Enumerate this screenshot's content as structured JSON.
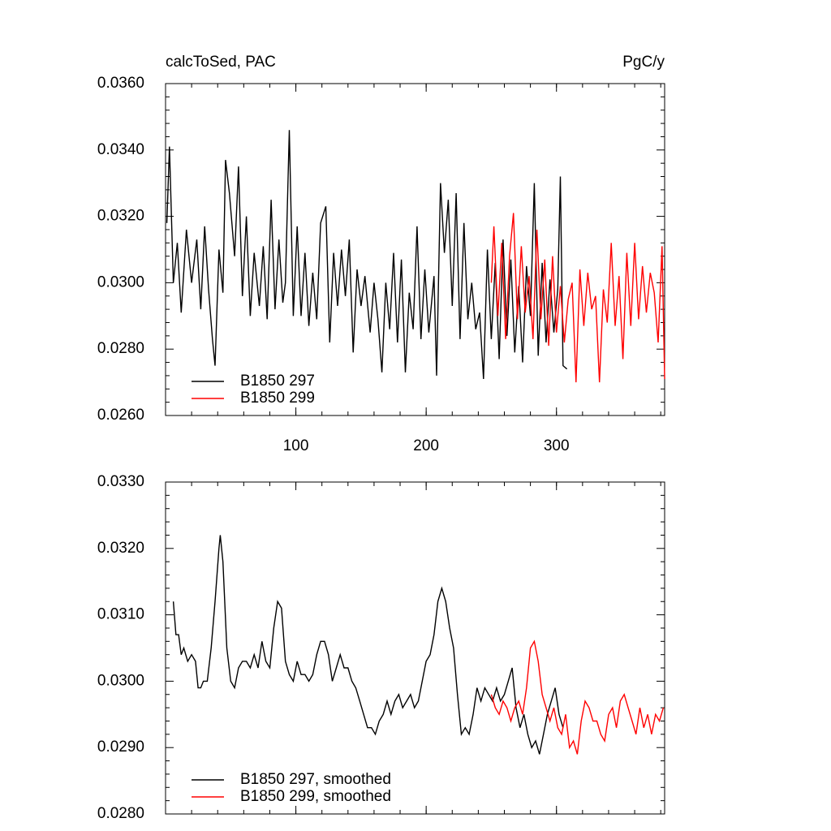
{
  "chart_data": [
    {
      "type": "line",
      "title_left": "calcToSed, PAC",
      "title_right": "PgC/y",
      "xlim": [
        0,
        383
      ],
      "xticks": [
        100,
        200,
        300
      ],
      "xtick_labels": true,
      "ylim": [
        0.026,
        0.036
      ],
      "yticks": [
        {
          "value": 0.026,
          "label": "0.0260"
        },
        {
          "value": 0.028,
          "label": "0.0280"
        },
        {
          "value": 0.03,
          "label": "0.0300"
        },
        {
          "value": 0.032,
          "label": "0.0320"
        },
        {
          "value": 0.034,
          "label": "0.0340"
        },
        {
          "value": 0.036,
          "label": "0.0360"
        }
      ],
      "legend": "bottom-left",
      "series": [
        {
          "name": "B1850 297",
          "color": "#000000",
          "x": [
            1,
            3,
            6,
            9,
            12,
            16,
            20,
            24,
            27,
            30,
            33,
            36,
            38,
            41,
            44,
            46,
            49,
            53,
            56,
            59,
            62,
            65,
            68,
            72,
            75,
            78,
            81,
            84,
            87,
            90,
            92,
            95,
            98,
            101,
            104,
            107,
            110,
            113,
            116,
            119,
            123,
            126,
            129,
            132,
            135,
            138,
            141,
            144,
            147,
            150,
            153,
            157,
            160,
            163,
            166,
            169,
            172,
            175,
            178,
            181,
            184,
            187,
            190,
            193,
            196,
            199,
            202,
            206,
            208,
            211,
            214,
            217,
            220,
            223,
            226,
            229,
            232,
            235,
            238,
            241,
            244,
            247,
            250,
            253,
            256,
            259,
            262,
            265,
            268,
            271,
            274,
            277,
            280,
            283,
            286,
            289,
            292,
            295,
            298,
            301,
            303,
            305,
            308
          ],
          "values": [
            0.0318,
            0.0341,
            0.03,
            0.0312,
            0.0291,
            0.0316,
            0.03,
            0.0313,
            0.0292,
            0.0317,
            0.0298,
            0.0283,
            0.0275,
            0.031,
            0.0297,
            0.0337,
            0.0327,
            0.0308,
            0.0335,
            0.0296,
            0.032,
            0.029,
            0.0309,
            0.0293,
            0.0311,
            0.0289,
            0.0325,
            0.0292,
            0.0313,
            0.0294,
            0.03,
            0.0346,
            0.029,
            0.0317,
            0.029,
            0.0309,
            0.0287,
            0.0303,
            0.0289,
            0.0318,
            0.0323,
            0.0282,
            0.0309,
            0.0293,
            0.031,
            0.0296,
            0.0313,
            0.0279,
            0.0304,
            0.0293,
            0.0302,
            0.0285,
            0.03,
            0.0289,
            0.0273,
            0.03,
            0.0286,
            0.0309,
            0.0282,
            0.0307,
            0.0273,
            0.0297,
            0.0286,
            0.0317,
            0.0283,
            0.0304,
            0.0285,
            0.0302,
            0.0272,
            0.033,
            0.0309,
            0.0325,
            0.0293,
            0.0327,
            0.0283,
            0.0318,
            0.0289,
            0.03,
            0.0286,
            0.0291,
            0.0271,
            0.031,
            0.0283,
            0.0306,
            0.0277,
            0.0313,
            0.0284,
            0.0307,
            0.0279,
            0.0299,
            0.0276,
            0.0305,
            0.029,
            0.033,
            0.0278,
            0.0306,
            0.0282,
            0.0301,
            0.0285,
            0.0298,
            0.0332,
            0.0275,
            0.0274
          ]
        },
        {
          "name": "B1850 299",
          "color": "#ff0000",
          "x": [
            250,
            252,
            255,
            258,
            261,
            264,
            267,
            270,
            273,
            276,
            279,
            282,
            285,
            288,
            291,
            294,
            297,
            300,
            303,
            306,
            309,
            312,
            315,
            318,
            321,
            324,
            327,
            330,
            333,
            336,
            339,
            342,
            345,
            348,
            351,
            354,
            357,
            360,
            363,
            366,
            369,
            372,
            375,
            378,
            381,
            383
          ],
          "values": [
            0.03,
            0.0317,
            0.029,
            0.0312,
            0.0283,
            0.0308,
            0.0321,
            0.0289,
            0.0311,
            0.0291,
            0.0302,
            0.0283,
            0.0316,
            0.0289,
            0.0307,
            0.0281,
            0.0308,
            0.0285,
            0.0299,
            0.0282,
            0.0295,
            0.03,
            0.027,
            0.0304,
            0.0287,
            0.0303,
            0.0292,
            0.0296,
            0.027,
            0.0298,
            0.0288,
            0.0312,
            0.0287,
            0.0302,
            0.0277,
            0.0309,
            0.0287,
            0.0312,
            0.0289,
            0.0305,
            0.0291,
            0.0303,
            0.0297,
            0.0282,
            0.0311,
            0.0271
          ]
        }
      ]
    },
    {
      "type": "line",
      "xlim": [
        0,
        383
      ],
      "xticks": [
        100,
        200,
        300
      ],
      "xtick_labels": false,
      "ylim": [
        0.028,
        0.033
      ],
      "yticks": [
        {
          "value": 0.028,
          "label": "0.0280"
        },
        {
          "value": 0.029,
          "label": "0.0290"
        },
        {
          "value": 0.03,
          "label": "0.0300"
        },
        {
          "value": 0.031,
          "label": "0.0310"
        },
        {
          "value": 0.032,
          "label": "0.0320"
        },
        {
          "value": 0.033,
          "label": "0.0330"
        }
      ],
      "legend": "bottom-left",
      "series": [
        {
          "name": "B1850 297, smoothed",
          "color": "#000000",
          "x": [
            6,
            8,
            10,
            12,
            14,
            17,
            20,
            23,
            25,
            27,
            29,
            32,
            35,
            38,
            41,
            42,
            44,
            47,
            50,
            53,
            56,
            59,
            62,
            65,
            68,
            71,
            74,
            77,
            80,
            83,
            86,
            89,
            92,
            95,
            98,
            101,
            104,
            107,
            110,
            113,
            116,
            119,
            122,
            125,
            128,
            131,
            134,
            137,
            140,
            143,
            146,
            149,
            152,
            155,
            158,
            161,
            164,
            167,
            170,
            173,
            176,
            179,
            182,
            185,
            188,
            191,
            194,
            197,
            200,
            203,
            206,
            209,
            212,
            215,
            218,
            221,
            224,
            227,
            230,
            233,
            236,
            239,
            242,
            245,
            248,
            251,
            254,
            257,
            260,
            263,
            266,
            269,
            272,
            275,
            278,
            281,
            284,
            287,
            290,
            293,
            296,
            299,
            302,
            305
          ],
          "values": [
            0.0312,
            0.0307,
            0.0307,
            0.0304,
            0.0305,
            0.0303,
            0.0304,
            0.0303,
            0.0299,
            0.0299,
            0.03,
            0.03,
            0.0305,
            0.0312,
            0.032,
            0.0322,
            0.0318,
            0.0305,
            0.03,
            0.0299,
            0.0302,
            0.0303,
            0.0303,
            0.0302,
            0.0304,
            0.0302,
            0.0306,
            0.0303,
            0.0302,
            0.0308,
            0.0312,
            0.0311,
            0.0303,
            0.0301,
            0.03,
            0.0303,
            0.0301,
            0.0301,
            0.03,
            0.0301,
            0.0304,
            0.0306,
            0.0306,
            0.0304,
            0.03,
            0.0302,
            0.0304,
            0.0302,
            0.0302,
            0.03,
            0.0299,
            0.0297,
            0.0295,
            0.0293,
            0.0293,
            0.0292,
            0.0294,
            0.0295,
            0.0297,
            0.0295,
            0.0297,
            0.0298,
            0.0296,
            0.0297,
            0.0298,
            0.0296,
            0.0297,
            0.03,
            0.0303,
            0.0304,
            0.0307,
            0.0312,
            0.0314,
            0.0312,
            0.0308,
            0.0305,
            0.0298,
            0.0292,
            0.0293,
            0.0292,
            0.0295,
            0.0299,
            0.0297,
            0.0299,
            0.0298,
            0.0297,
            0.0299,
            0.0297,
            0.0298,
            0.03,
            0.0302,
            0.0296,
            0.0293,
            0.0295,
            0.0292,
            0.029,
            0.0291,
            0.0289,
            0.0292,
            0.0295,
            0.0297,
            0.0299,
            0.0295,
            0.0293
          ]
        },
        {
          "name": "B1850 299, smoothed",
          "color": "#ff0000",
          "x": [
            250,
            253,
            256,
            259,
            262,
            265,
            268,
            271,
            274,
            277,
            280,
            283,
            286,
            289,
            292,
            295,
            298,
            301,
            304,
            307,
            310,
            313,
            316,
            319,
            322,
            325,
            328,
            331,
            334,
            337,
            340,
            343,
            346,
            349,
            352,
            355,
            358,
            361,
            364,
            367,
            370,
            373,
            376,
            379,
            382
          ],
          "values": [
            0.0298,
            0.0296,
            0.0295,
            0.0297,
            0.0296,
            0.0294,
            0.0296,
            0.0297,
            0.0295,
            0.0299,
            0.0305,
            0.0306,
            0.0303,
            0.0298,
            0.0296,
            0.0294,
            0.0296,
            0.0293,
            0.0292,
            0.0295,
            0.029,
            0.0291,
            0.0289,
            0.0294,
            0.0297,
            0.0296,
            0.0294,
            0.0294,
            0.0292,
            0.0291,
            0.0295,
            0.0296,
            0.0293,
            0.0297,
            0.0298,
            0.0296,
            0.0294,
            0.0292,
            0.0296,
            0.0293,
            0.0295,
            0.0292,
            0.0295,
            0.0294,
            0.0296
          ]
        }
      ]
    }
  ]
}
